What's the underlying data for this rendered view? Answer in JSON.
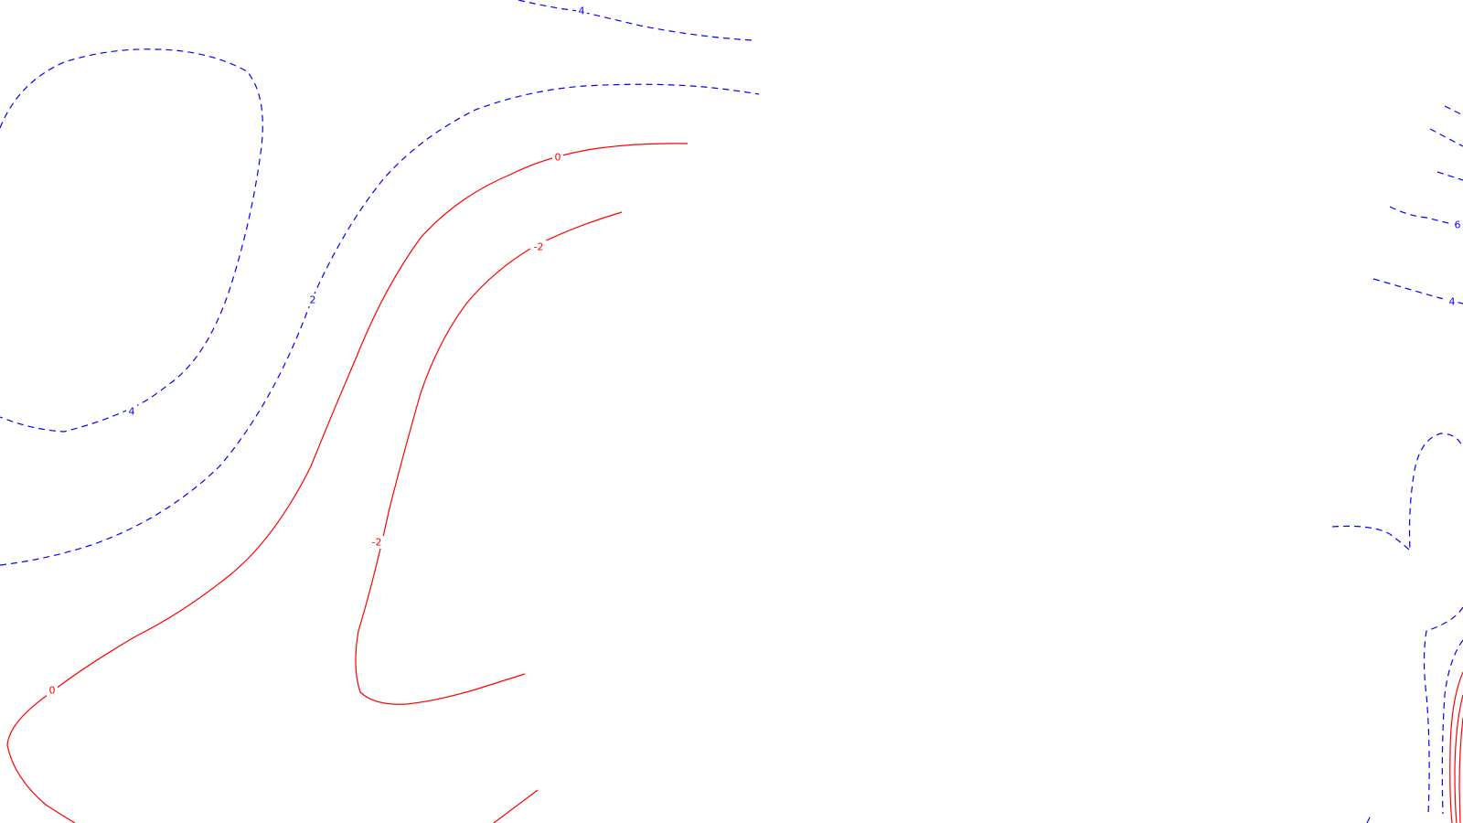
{
  "map": {
    "colors": {
      "background": "#ffffff",
      "negative_and_zero": "#ff0000",
      "positive": "#0000ff"
    },
    "contour_labels": [
      {
        "id": "lbl-4-top",
        "text": "4",
        "value": 4,
        "sign": "positive"
      },
      {
        "id": "lbl-4-left",
        "text": "4",
        "value": 4,
        "sign": "positive"
      },
      {
        "id": "lbl-2",
        "text": "2",
        "value": 2,
        "sign": "positive"
      },
      {
        "id": "lbl-0-top",
        "text": "0",
        "value": 0,
        "sign": "zero"
      },
      {
        "id": "lbl-0-bottom",
        "text": "0",
        "value": 0,
        "sign": "zero"
      },
      {
        "id": "lbl-neg2-top",
        "text": "-2",
        "value": -2,
        "sign": "negative"
      },
      {
        "id": "lbl-neg2-mid",
        "text": "-2",
        "value": -2,
        "sign": "negative"
      },
      {
        "id": "lbl-6-right",
        "text": "6",
        "value": 6,
        "sign": "positive"
      },
      {
        "id": "lbl-4-right",
        "text": "4",
        "value": 4,
        "sign": "positive"
      }
    ]
  }
}
